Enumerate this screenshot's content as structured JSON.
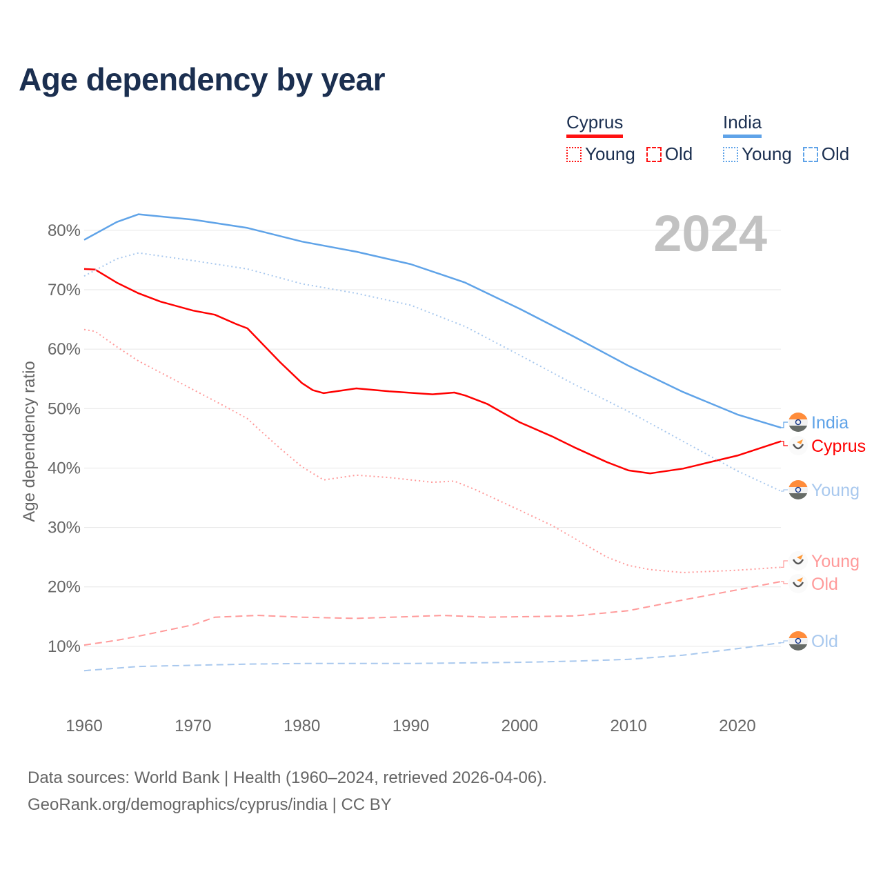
{
  "title": "Age dependency by year",
  "year_badge": "2024",
  "legend": {
    "groups": [
      {
        "name": "Cyprus",
        "color": "#ff1111",
        "items": [
          "Young",
          "Old"
        ]
      },
      {
        "name": "India",
        "color": "#5fa3e8",
        "items": [
          "Young",
          "Old"
        ]
      }
    ]
  },
  "source": {
    "line1": "Data sources: World Bank | Health (1960–2024, retrieved 2026-04-06).",
    "line2": "GeoRank.org/demographics/cyprus/india | CC BY"
  },
  "chart_data": {
    "type": "line",
    "title": "Age dependency by year",
    "xlabel": "",
    "ylabel": "Age dependency ratio",
    "xlim": [
      1960,
      2024
    ],
    "ylim": [
      0,
      85
    ],
    "xticks": [
      1960,
      1970,
      1980,
      1990,
      2000,
      2010,
      2020
    ],
    "yticks": [
      10,
      20,
      30,
      40,
      50,
      60,
      70,
      80
    ],
    "ytick_suffix": "%",
    "grid": true,
    "legend_position": "top-right",
    "series": [
      {
        "name": "India",
        "label": "India",
        "color": "#5fa3e8",
        "style": "solid",
        "flag": "india",
        "x": [
          1960,
          1963,
          1965,
          1970,
          1975,
          1980,
          1985,
          1990,
          1995,
          2000,
          2005,
          2010,
          2015,
          2020,
          2024
        ],
        "y": [
          78.4,
          81.4,
          82.7,
          81.8,
          80.4,
          78.1,
          76.4,
          74.3,
          71.2,
          66.8,
          62.1,
          57.2,
          52.8,
          49.0,
          46.8
        ]
      },
      {
        "name": "Cyprus",
        "label": "Cyprus",
        "color": "#ff0000",
        "style": "solid",
        "flag": "cyprus",
        "x": [
          1960,
          1961,
          1963,
          1965,
          1967,
          1970,
          1972,
          1974,
          1975,
          1976,
          1978,
          1980,
          1981,
          1982,
          1985,
          1988,
          1992,
          1994,
          1995,
          1997,
          2000,
          2003,
          2005,
          2008,
          2010,
          2012,
          2015,
          2020,
          2024
        ],
        "y": [
          73.5,
          73.4,
          71.2,
          69.4,
          68.0,
          66.5,
          65.8,
          64.2,
          63.5,
          61.6,
          57.8,
          54.3,
          53.1,
          52.6,
          53.4,
          52.9,
          52.4,
          52.7,
          52.2,
          50.8,
          47.7,
          45.3,
          43.5,
          41.0,
          39.6,
          39.1,
          39.9,
          42.1,
          44.5
        ]
      },
      {
        "name": "India Young",
        "label": "Young",
        "color": "#a8c8ee",
        "style": "dotted",
        "flag": "india",
        "x": [
          1960,
          1963,
          1965,
          1970,
          1975,
          1980,
          1985,
          1990,
          1995,
          2000,
          2005,
          2010,
          2015,
          2020,
          2024
        ],
        "y": [
          72.3,
          75.2,
          76.2,
          74.9,
          73.5,
          71.0,
          69.4,
          67.4,
          63.8,
          59.0,
          54.1,
          49.5,
          44.5,
          39.5,
          36.1
        ]
      },
      {
        "name": "Cyprus Young",
        "label": "Young",
        "color": "#ff9a9a",
        "style": "dotted",
        "flag": "cyprus",
        "x": [
          1960,
          1961,
          1963,
          1965,
          1970,
          1973,
          1975,
          1976,
          1978,
          1980,
          1982,
          1985,
          1988,
          1992,
          1994,
          1996,
          2000,
          2003,
          2005,
          2008,
          2010,
          2012,
          2015,
          2020,
          2024
        ],
        "y": [
          63.3,
          63.0,
          60.4,
          58.0,
          53.2,
          50.3,
          48.3,
          46.6,
          43.3,
          40.2,
          38.0,
          38.8,
          38.4,
          37.6,
          37.8,
          36.3,
          32.9,
          30.3,
          28.2,
          25.0,
          23.6,
          22.9,
          22.4,
          22.8,
          23.3
        ]
      },
      {
        "name": "Cyprus Old",
        "label": "Old",
        "color": "#ff9a9a",
        "style": "dashed",
        "flag": "cyprus",
        "x": [
          1960,
          1963,
          1965,
          1970,
          1972,
          1976,
          1980,
          1985,
          1990,
          1993,
          1997,
          2005,
          2010,
          2015,
          2020,
          2024
        ],
        "y": [
          10.2,
          11.0,
          11.7,
          13.6,
          14.9,
          15.2,
          14.9,
          14.7,
          15.0,
          15.2,
          14.9,
          15.1,
          16.0,
          17.8,
          19.5,
          20.9
        ]
      },
      {
        "name": "India Old",
        "label": "Old",
        "color": "#a8c8ee",
        "style": "dashed",
        "flag": "india",
        "x": [
          1960,
          1965,
          1970,
          1975,
          1980,
          1990,
          2000,
          2005,
          2010,
          2015,
          2020,
          2024
        ],
        "y": [
          5.9,
          6.6,
          6.8,
          7.0,
          7.1,
          7.1,
          7.3,
          7.5,
          7.8,
          8.5,
          9.6,
          10.6
        ]
      }
    ]
  }
}
